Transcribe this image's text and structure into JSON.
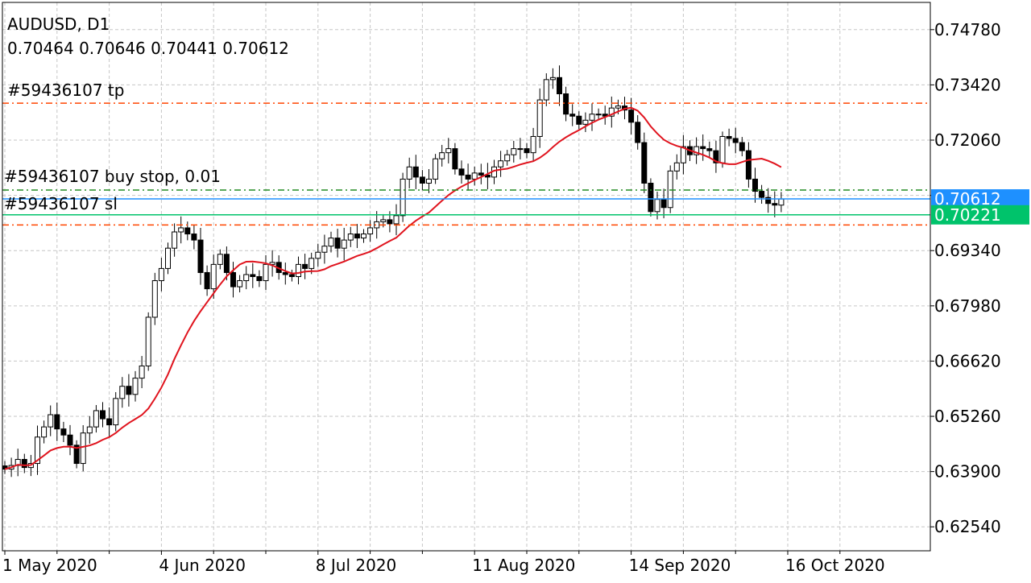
{
  "header": {
    "title": "AUDUSD, D1",
    "ohlc": "0.70464 0.70646 0.70441 0.70612"
  },
  "orders": {
    "tp_label": "#59436107 tp",
    "buy_stop_label": "#59436107 buy stop, 0.01",
    "sl_label": "#59436107 sl"
  },
  "chart_data": {
    "type": "candlestick",
    "symbol": "AUDUSD",
    "timeframe": "D1",
    "ylim": [
      0.6195,
      0.7545
    ],
    "y_ticks": [
      0.7478,
      0.7342,
      0.7206,
      0.707,
      0.6934,
      0.6798,
      0.6662,
      0.6526,
      0.639,
      0.6254
    ],
    "y_tick_labels": [
      "0.74780",
      "0.73420",
      "0.72060",
      "",
      "0.69340",
      "0.67980",
      "0.66620",
      "0.65260",
      "0.63900",
      "0.62540"
    ],
    "x_labels": [
      {
        "label": "1 May 2020",
        "bar": 0
      },
      {
        "label": "4 Jun 2020",
        "bar": 24
      },
      {
        "label": "8 Jul 2020",
        "bar": 48
      },
      {
        "label": "11 Aug 2020",
        "bar": 72
      },
      {
        "label": "14 Sep 2020",
        "bar": 96
      },
      {
        "label": "16 Oct 2020",
        "bar": 120
      }
    ],
    "levels": {
      "tp": 0.7297,
      "buy_stop": 0.7083,
      "bid": 0.70612,
      "sl": 0.70221,
      "lower": 0.6997
    },
    "price_tags": [
      {
        "value": 0.70612,
        "label": "0.70612",
        "color": "#1e90ff"
      },
      {
        "value": 0.70221,
        "label": "0.70221",
        "color": "#00c36b"
      }
    ],
    "colors": {
      "tp": "#ff4500",
      "buy_stop": "#228b22",
      "bid": "#1e90ff",
      "sl": "#00c36b",
      "ma": "#e0141e",
      "grid": "#c6c6c6",
      "bull": "#ffffff",
      "bear": "#000000"
    },
    "closes": [
      0.6396,
      0.6405,
      0.642,
      0.64,
      0.641,
      0.6475,
      0.65,
      0.653,
      0.6495,
      0.648,
      0.6455,
      0.641,
      0.6485,
      0.65,
      0.654,
      0.652,
      0.6505,
      0.657,
      0.66,
      0.658,
      0.662,
      0.665,
      0.677,
      0.686,
      0.689,
      0.694,
      0.698,
      0.699,
      0.6975,
      0.696,
      0.688,
      0.684,
      0.69,
      0.6925,
      0.688,
      0.6845,
      0.686,
      0.6875,
      0.687,
      0.686,
      0.69,
      0.6905,
      0.688,
      0.6875,
      0.687,
      0.69,
      0.689,
      0.6915,
      0.693,
      0.6945,
      0.6965,
      0.694,
      0.696,
      0.6975,
      0.6965,
      0.6975,
      0.699,
      0.7005,
      0.701,
      0.7,
      0.702,
      0.711,
      0.714,
      0.7115,
      0.71,
      0.711,
      0.716,
      0.7175,
      0.7185,
      0.7135,
      0.712,
      0.711,
      0.7125,
      0.712,
      0.7115,
      0.714,
      0.7155,
      0.717,
      0.7185,
      0.7185,
      0.7175,
      0.7215,
      0.7305,
      0.7355,
      0.736,
      0.732,
      0.727,
      0.7265,
      0.7245,
      0.7255,
      0.727,
      0.727,
      0.7265,
      0.7285,
      0.729,
      0.728,
      0.725,
      0.72,
      0.71,
      0.703,
      0.706,
      0.704,
      0.713,
      0.715,
      0.719,
      0.717,
      0.719,
      0.7185,
      0.718,
      0.715,
      0.7215,
      0.721,
      0.72,
      0.718,
      0.711,
      0.708,
      0.7065,
      0.705,
      0.7046,
      0.7061
    ],
    "ma_period": 15
  }
}
